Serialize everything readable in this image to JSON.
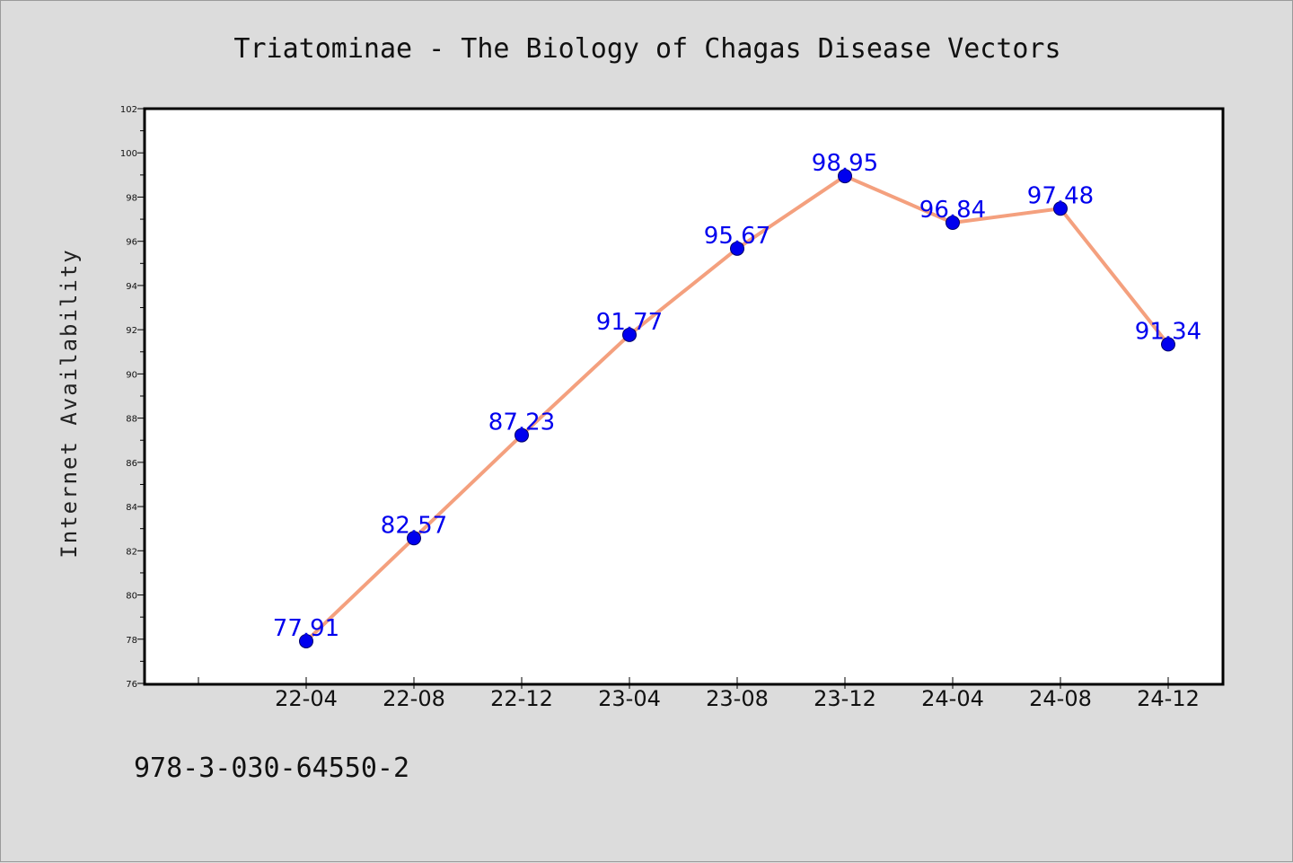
{
  "chart_data": {
    "type": "line",
    "title": "Triatominae - The Biology of Chagas Disease Vectors",
    "xlabel": "",
    "ylabel": "Internet Availability",
    "categories": [
      "22-04",
      "22-08",
      "22-12",
      "23-04",
      "23-08",
      "23-12",
      "24-04",
      "24-08",
      "24-12"
    ],
    "values": [
      77.91,
      82.57,
      87.23,
      91.77,
      95.67,
      98.95,
      96.84,
      97.48,
      91.34
    ],
    "data_labels": [
      "77.91",
      "82.57",
      "87.23",
      "91.77",
      "95.67",
      "98.95",
      "96.84",
      "97.48",
      "91.34"
    ],
    "ylim": [
      76,
      102
    ],
    "yticks": [
      "76",
      "78",
      "80",
      "82",
      "84",
      "86",
      "88",
      "90",
      "92",
      "94",
      "96",
      "98",
      "100",
      "102"
    ],
    "grid": false,
    "line_color": "#f4a07e",
    "marker_color": "#0000ee"
  },
  "footer": {
    "isbn": "978-3-030-64550-2"
  }
}
